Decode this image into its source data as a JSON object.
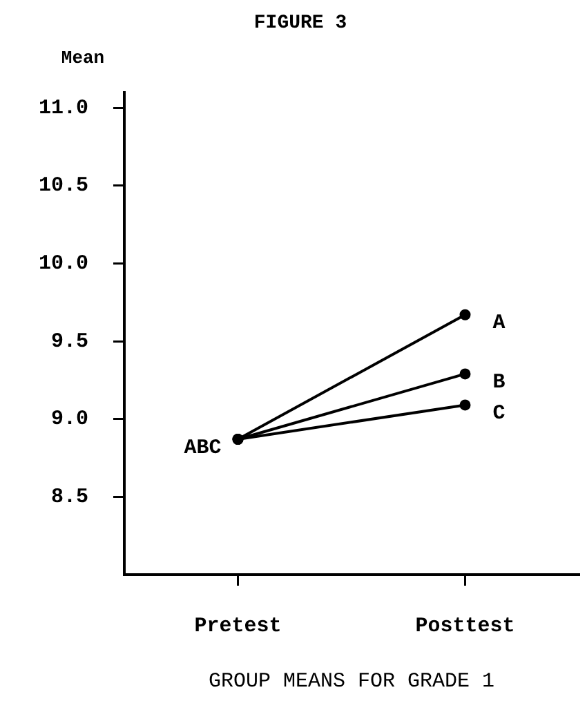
{
  "chart_data": {
    "type": "line",
    "title": "FIGURE 3",
    "ylabel": "Mean",
    "xlabel": "GROUP MEANS FOR GRADE 1",
    "categories": [
      "Pretest",
      "Posttest"
    ],
    "series": [
      {
        "name": "A",
        "color": "#000000",
        "values": [
          8.87,
          9.67
        ]
      },
      {
        "name": "B",
        "color": "#000000",
        "values": [
          8.87,
          9.29
        ]
      },
      {
        "name": "C",
        "color": "#000000",
        "values": [
          8.87,
          9.09
        ]
      }
    ],
    "annotations": [
      {
        "text": "ABC",
        "x": "Pretest",
        "y": 8.87
      }
    ],
    "ylim": [
      8.0,
      11.1
    ],
    "yticks": [
      8.5,
      {
        "value": 9,
        "label": "9.0"
      },
      9.5,
      {
        "value": 10,
        "label": "10.0"
      },
      10.5,
      {
        "value": 11,
        "label": "11.0"
      }
    ],
    "grid": false,
    "legend": false,
    "marker": "circle",
    "line_style": "solid"
  }
}
